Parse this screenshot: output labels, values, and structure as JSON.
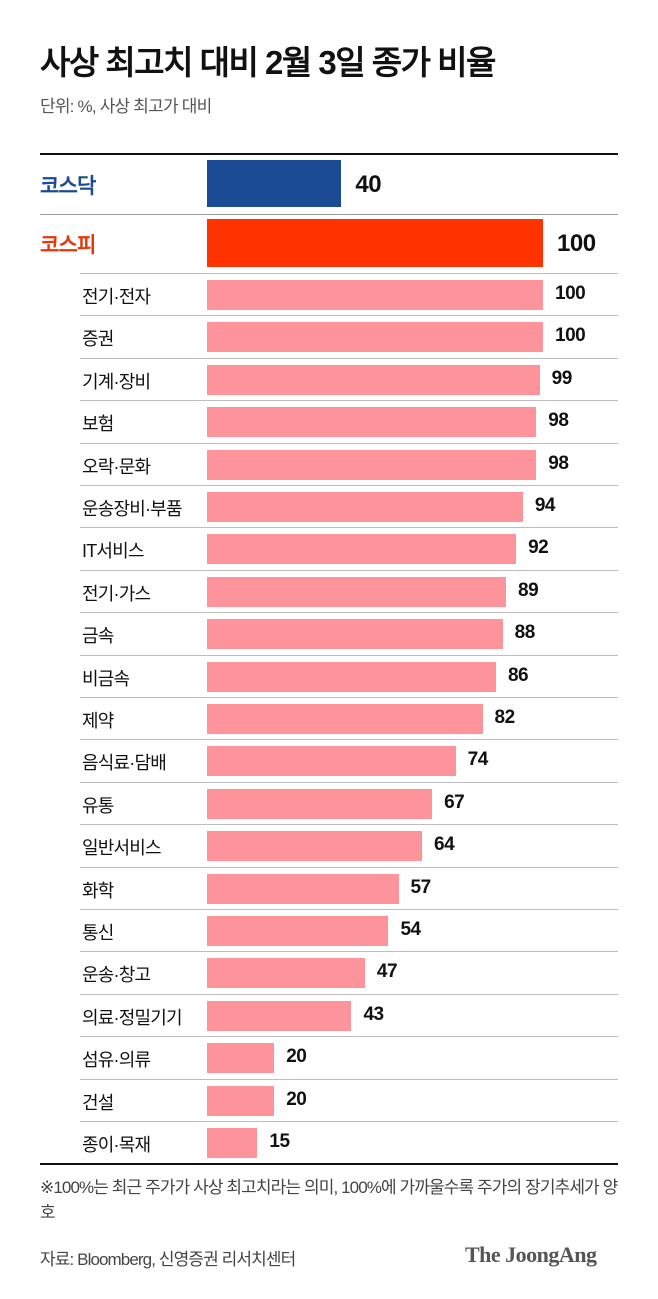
{
  "header": {
    "title": "사상 최고치 대비 2월 3일 종가 비율",
    "subtitle": "단위: %, 사상 최고가 대비"
  },
  "colors": {
    "kosdaq": "#1b4b94",
    "kospi": "#ff3300",
    "sector": "#fd939b",
    "kosdaq_label": "#1b4b94",
    "kospi_label": "#e8370c"
  },
  "chart_data": {
    "type": "bar",
    "orientation": "horizontal",
    "title": "사상 최고치 대비 2월 3일 종가 비율",
    "subtitle": "단위: %, 사상 최고가 대비",
    "xlabel": "",
    "ylabel": "",
    "xlim": [
      0,
      100
    ],
    "grid": false,
    "categories": [
      "코스닥",
      "코스피",
      "전기·전자",
      "증권",
      "기계·장비",
      "보험",
      "오락·문화",
      "운송장비·부품",
      "IT서비스",
      "전기·가스",
      "금속",
      "비금속",
      "제약",
      "음식료·담배",
      "유통",
      "일반서비스",
      "화학",
      "통신",
      "운송·창고",
      "의료·정밀기기",
      "섬유·의류",
      "건설",
      "종이·목재"
    ],
    "values": [
      40,
      100,
      100,
      100,
      99,
      98,
      98,
      94,
      92,
      89,
      88,
      86,
      82,
      74,
      67,
      64,
      57,
      54,
      47,
      43,
      20,
      20,
      15
    ],
    "indices": [
      {
        "name": "코스닥",
        "value": 40
      },
      {
        "name": "코스피",
        "value": 100
      }
    ],
    "sectors": [
      {
        "name": "전기·전자",
        "value": 100
      },
      {
        "name": "증권",
        "value": 100
      },
      {
        "name": "기계·장비",
        "value": 99
      },
      {
        "name": "보험",
        "value": 98
      },
      {
        "name": "오락·문화",
        "value": 98
      },
      {
        "name": "운송장비·부품",
        "value": 94
      },
      {
        "name": "IT서비스",
        "value": 92
      },
      {
        "name": "전기·가스",
        "value": 89
      },
      {
        "name": "금속",
        "value": 88
      },
      {
        "name": "비금속",
        "value": 86
      },
      {
        "name": "제약",
        "value": 82
      },
      {
        "name": "음식료·담배",
        "value": 74
      },
      {
        "name": "유통",
        "value": 67
      },
      {
        "name": "일반서비스",
        "value": 64
      },
      {
        "name": "화학",
        "value": 57
      },
      {
        "name": "통신",
        "value": 54
      },
      {
        "name": "운송·창고",
        "value": 47
      },
      {
        "name": "의료·정밀기기",
        "value": 43
      },
      {
        "name": "섬유·의류",
        "value": 20
      },
      {
        "name": "건설",
        "value": 20
      },
      {
        "name": "종이·목재",
        "value": 15
      }
    ]
  },
  "footer": {
    "note": "※100%는 최근 주가가 사상 최고치라는 의미, 100%에 가까울수록 주가의 장기추세가 양호",
    "source": "자료: Bloomberg, 신영증권 리서치센터",
    "logo": "The JoongAng"
  }
}
